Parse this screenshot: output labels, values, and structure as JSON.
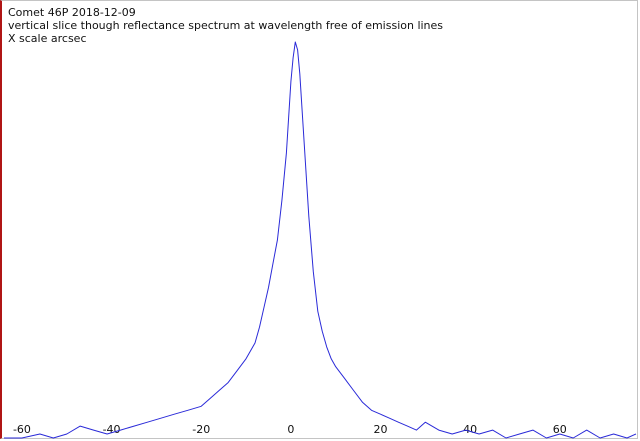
{
  "chart_data": {
    "type": "line",
    "title": "Comet 46P 2018-12-09",
    "subtitle": "vertical slice though reflectance spectrum at wavelength free of emission lines",
    "xlabel": "X scale arcsec",
    "ylabel": "",
    "xlim": [
      -64,
      77
    ],
    "ylim": [
      0,
      1.0
    ],
    "x_ticks": [
      -60,
      -40,
      -20,
      0,
      20,
      40,
      60
    ],
    "grid": false,
    "legend": "none",
    "line_color": "#2a2ad8",
    "series": [
      {
        "x": [
          -64,
          -60,
          -56,
          -53,
          -50,
          -47,
          -44,
          -41,
          -38,
          -35,
          -32,
          -29,
          -26,
          -23,
          -20,
          -18,
          -16,
          -14,
          -12,
          -10,
          -9,
          -8,
          -7,
          -6,
          -5,
          -4,
          -3,
          -2,
          -1,
          0,
          0.5,
          1,
          1.5,
          2,
          3,
          4,
          5,
          6,
          7,
          8,
          9,
          10,
          12,
          14,
          16,
          18,
          20,
          22,
          24,
          26,
          28,
          30,
          33,
          36,
          39,
          42,
          45,
          48,
          51,
          54,
          57,
          60,
          63,
          66,
          69,
          72,
          75,
          77
        ],
        "values": [
          0.0,
          0.0,
          0.01,
          0.0,
          0.01,
          0.03,
          0.02,
          0.01,
          0.02,
          0.03,
          0.04,
          0.05,
          0.06,
          0.07,
          0.08,
          0.1,
          0.12,
          0.14,
          0.17,
          0.2,
          0.22,
          0.24,
          0.28,
          0.33,
          0.38,
          0.44,
          0.5,
          0.6,
          0.72,
          0.9,
          0.96,
          1.0,
          0.98,
          0.92,
          0.74,
          0.56,
          0.42,
          0.32,
          0.27,
          0.23,
          0.2,
          0.18,
          0.15,
          0.12,
          0.09,
          0.07,
          0.06,
          0.05,
          0.04,
          0.03,
          0.02,
          0.04,
          0.02,
          0.01,
          0.02,
          0.01,
          0.02,
          0.0,
          0.01,
          0.02,
          0.0,
          0.01,
          0.0,
          0.02,
          0.0,
          0.01,
          0.0,
          0.01
        ]
      }
    ]
  }
}
